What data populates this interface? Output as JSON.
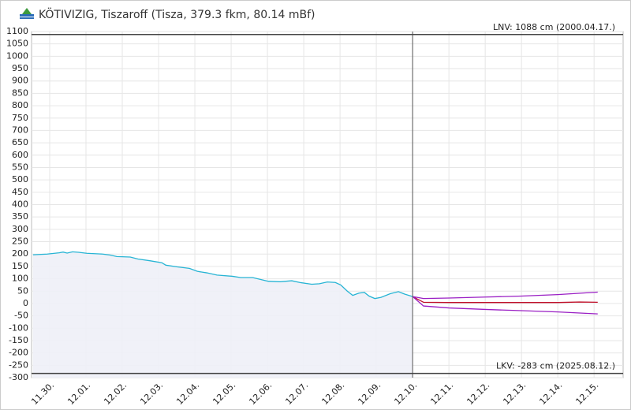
{
  "chart_data": {
    "type": "line",
    "title": "KÖTIVIZIG, Tiszaroff (Tisza, 379.3 fkm, 80.14 mBf)",
    "ylim": [
      -300,
      1100
    ],
    "yticks": [
      -300,
      -250,
      -200,
      -150,
      -100,
      -50,
      0,
      50,
      100,
      150,
      200,
      250,
      300,
      350,
      400,
      450,
      500,
      550,
      600,
      650,
      700,
      750,
      800,
      850,
      900,
      950,
      1000,
      1050,
      1100
    ],
    "xlim": [
      -0.5,
      15.8
    ],
    "xticks": [
      {
        "value": 0,
        "label": "11.30."
      },
      {
        "value": 1,
        "label": "12.01."
      },
      {
        "value": 2,
        "label": "12.02."
      },
      {
        "value": 3,
        "label": "12.03."
      },
      {
        "value": 4,
        "label": "12.04."
      },
      {
        "value": 5,
        "label": "12.05."
      },
      {
        "value": 6,
        "label": "12.06."
      },
      {
        "value": 7,
        "label": "12.07."
      },
      {
        "value": 8,
        "label": "12.08."
      },
      {
        "value": 9,
        "label": "12.09."
      },
      {
        "value": 10,
        "label": "12.10."
      },
      {
        "value": 11,
        "label": "12.11."
      },
      {
        "value": 12,
        "label": "12.12."
      },
      {
        "value": 13,
        "label": "12.13."
      },
      {
        "value": 14,
        "label": "12.14."
      },
      {
        "value": 15,
        "label": "12.15."
      }
    ],
    "grid": true,
    "now": 10,
    "reference_lines": [
      {
        "value": 1088,
        "label": "LNV: 1088 cm (2000.04.17.)"
      },
      {
        "value": -283,
        "label": "LKV: -283 cm (2025.08.12.)"
      }
    ],
    "series": [
      {
        "color": "#27b4d4",
        "area": true,
        "x": [
          -0.46,
          -0.07,
          0.26,
          0.37,
          0.48,
          0.63,
          0.8,
          1.02,
          1.46,
          1.67,
          1.85,
          2.22,
          2.43,
          2.76,
          3.09,
          3.2,
          3.52,
          3.85,
          4.07,
          4.33,
          4.61,
          5.04,
          5.26,
          5.59,
          6.02,
          6.35,
          6.67,
          6.89,
          7.22,
          7.43,
          7.65,
          7.87,
          8.02,
          8.2,
          8.35,
          8.52,
          8.67,
          8.8,
          8.96,
          9.13,
          9.39,
          9.61,
          9.78,
          10
        ],
        "values": [
          197,
          200,
          205,
          208,
          204,
          209,
          207,
          203,
          200,
          196,
          190,
          188,
          180,
          173,
          165,
          155,
          148,
          142,
          130,
          124,
          115,
          110,
          105,
          105,
          90,
          88,
          92,
          85,
          78,
          80,
          87,
          85,
          75,
          50,
          33,
          42,
          45,
          30,
          20,
          25,
          40,
          48,
          38,
          28
        ]
      },
      {
        "color": "#c0102a",
        "x": [
          10,
          10.3,
          11,
          12,
          13,
          14,
          14.6,
          15.1
        ],
        "values": [
          28,
          5,
          4,
          4,
          4,
          4,
          6,
          5
        ]
      },
      {
        "color": "#9a1fc4",
        "x": [
          10,
          10.3,
          11,
          12,
          13,
          14,
          15.1
        ],
        "values": [
          28,
          20,
          22,
          26,
          30,
          36,
          46
        ]
      },
      {
        "color": "#9a1fc4",
        "x": [
          10,
          10.3,
          11,
          12,
          13,
          14,
          15.1
        ],
        "values": [
          28,
          -10,
          -18,
          -24,
          -29,
          -34,
          -42
        ]
      }
    ]
  }
}
